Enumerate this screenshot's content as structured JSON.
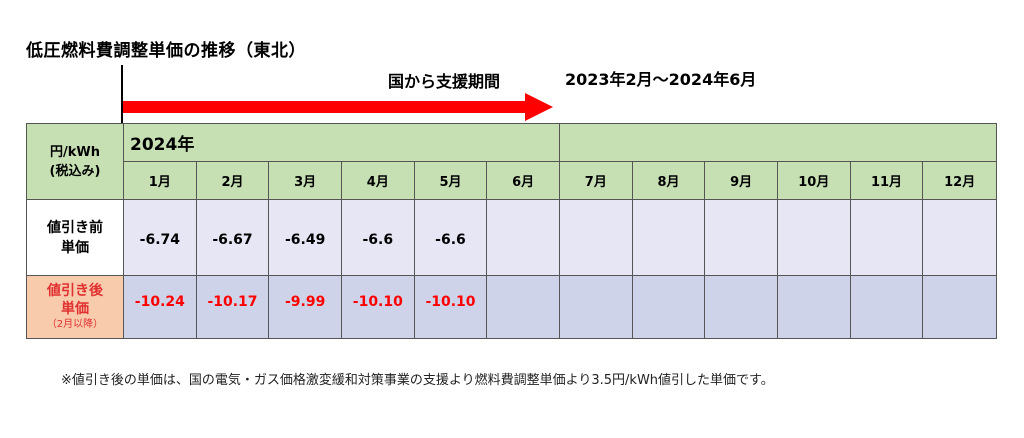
{
  "title": "低圧燃料費調整単価の推移（東北）",
  "support_label": "国から支援期間",
  "period": "2023年2月～2024年6月",
  "colors": {
    "arrow": "#ff0000",
    "header": "#c6e0b4",
    "row_before": "#e6e6f5",
    "row_after": "#cfd3ea",
    "after_label_bg": "#f8cbad",
    "after_text": "#ff0000"
  },
  "table": {
    "unit_line1": "円/kWh",
    "unit_line2": "(税込み)",
    "year": "2024年",
    "months": [
      "1月",
      "2月",
      "3月",
      "4月",
      "5月",
      "6月",
      "7月",
      "8月",
      "9月",
      "10月",
      "11月",
      "12月"
    ],
    "before_label_line1": "値引き前",
    "before_label_line2": "単価",
    "after_label_line1": "値引き後",
    "after_label_line2": "単価",
    "after_label_note": "（2月以降）",
    "before_values": [
      "-6.74",
      "-6.67",
      "-6.49",
      "-6.6",
      "-6.6",
      "",
      "",
      "",
      "",
      "",
      "",
      ""
    ],
    "after_values": [
      "-10.24",
      "-10.17",
      "-9.99",
      "-10.10",
      "-10.10",
      "",
      "",
      "",
      "",
      "",
      "",
      ""
    ]
  },
  "note": "※値引き後の単価は、国の電気・ガス価格激変緩和対策事業の支援より燃料費調整単価より3.5円/kWh値引した単価です。"
}
